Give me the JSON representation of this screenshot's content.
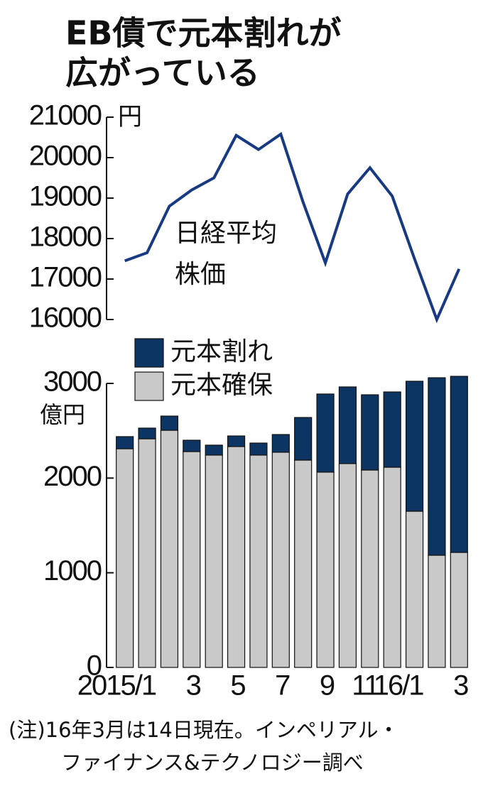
{
  "title": [
    "EB債で元本割れが",
    "広がっている"
  ],
  "note": [
    "(注)16年3月は14日現在。インペリアル・",
    "ファイナンス&テクノロジー調べ"
  ],
  "chart_data": [
    {
      "type": "line",
      "unit": "円",
      "annotation": [
        "日経平均",
        "株価"
      ],
      "color": "#173a82",
      "values": [
        17450,
        17650,
        18800,
        19200,
        19500,
        20550,
        20200,
        20580,
        18900,
        17400,
        19100,
        19750,
        19050,
        17500,
        16000,
        17250
      ],
      "ylim": [
        16000,
        21000
      ],
      "yticks": [
        16000,
        17000,
        18000,
        19000,
        20000,
        21000
      ]
    },
    {
      "type": "stacked-bar",
      "unit": "億円",
      "categories": [
        null,
        "2015/1",
        null,
        "3",
        null,
        "5",
        null,
        "7",
        null,
        "9",
        null,
        "11",
        null,
        "16/1",
        null,
        "3"
      ],
      "series": [
        {
          "name": "元本確保",
          "color": "#c9c9c9",
          "values": [
            2310,
            2415,
            2505,
            2280,
            2243,
            2333,
            2243,
            2273,
            2190,
            2063,
            2153,
            2085,
            2115,
            1650,
            1185,
            1215
          ]
        },
        {
          "name": "元本割れ",
          "color": "#0d3563",
          "values": [
            128,
            113,
            150,
            120,
            105,
            112,
            127,
            187,
            450,
            825,
            810,
            795,
            795,
            1373,
            1875,
            1860
          ]
        }
      ],
      "ylim": [
        0,
        3000
      ],
      "yticks": [
        0,
        1000,
        2000,
        3000
      ]
    }
  ]
}
